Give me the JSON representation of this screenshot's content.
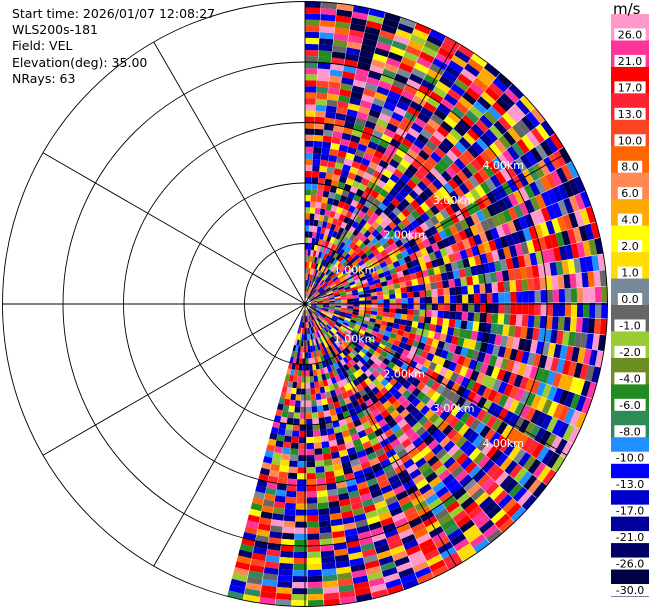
{
  "info": {
    "start_time": "Start time: 2026/01/07 12:08:27",
    "instrument": "WLS200s-181",
    "field": "Field: VEL",
    "elevation": "Elevation(deg): 35.00",
    "nrays": "NRays: 63"
  },
  "chart_data": {
    "type": "heatmap",
    "title": "",
    "projection": "polar PPI",
    "field": "VEL",
    "units": "m/s",
    "elevation_deg": 35.0,
    "n_rays": 63,
    "azimuth_coverage_deg": [
      0,
      195
    ],
    "max_range_km": 5.0,
    "range_ring_labels": [
      "1.00km",
      "2.00km",
      "3.00km",
      "4.00km"
    ],
    "colorbar_ticks": [
      "26.0",
      "21.0",
      "17.0",
      "13.0",
      "10.0",
      "8.0",
      "6.0",
      "4.0",
      "2.0",
      "1.0",
      "0.0",
      "-1.0",
      "-2.0",
      "-4.0",
      "-6.0",
      "-8.0",
      "-10.0",
      "-13.0",
      "-17.0",
      "-21.0",
      "-26.0",
      "-30.0"
    ],
    "colorbar_colors": [
      "#ff99cc",
      "#ff3399",
      "#ff0000",
      "#ff2233",
      "#ff4422",
      "#ff6600",
      "#ff8855",
      "#ffaa00",
      "#ffff00",
      "#ffdd00",
      "#778899",
      "#666666",
      "#99cc33",
      "#6b8e23",
      "#228b22",
      "#2e8b57",
      "#1e90ff",
      "#0000ff",
      "#0000cc",
      "#000099",
      "#000066",
      "#000044"
    ]
  }
}
